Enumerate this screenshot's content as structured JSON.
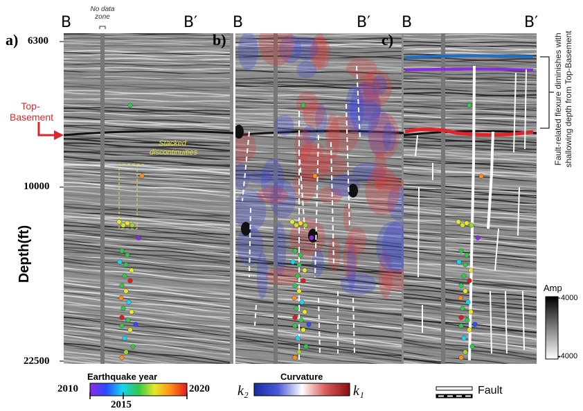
{
  "panels": [
    {
      "label": "a)",
      "left": "B",
      "right": "B′"
    },
    {
      "label": "b)",
      "left": "B",
      "right": "B′"
    },
    {
      "label": "c)",
      "left": "B",
      "right": "B′"
    }
  ],
  "no_data_zone": "No data zone",
  "depth_axis": {
    "title": "Depth(ft)",
    "ticks": [
      6300,
      10000,
      22500
    ]
  },
  "top_basement": "Top-Basement",
  "stacked": "Stacked discontinuities",
  "earthquake_legend": {
    "title": "Earthquake year",
    "ticks": [
      2010,
      2015,
      2020
    ]
  },
  "curvature_legend": {
    "title": "Curvature",
    "min": "k₂",
    "max": "k₁"
  },
  "fault_legend": "Fault",
  "amp_legend": {
    "title": "Amp",
    "ticks": [
      4000,
      -4000
    ]
  },
  "annotation": "Fault-related flexure diminishes with shallowing depth from Top-Basement"
}
